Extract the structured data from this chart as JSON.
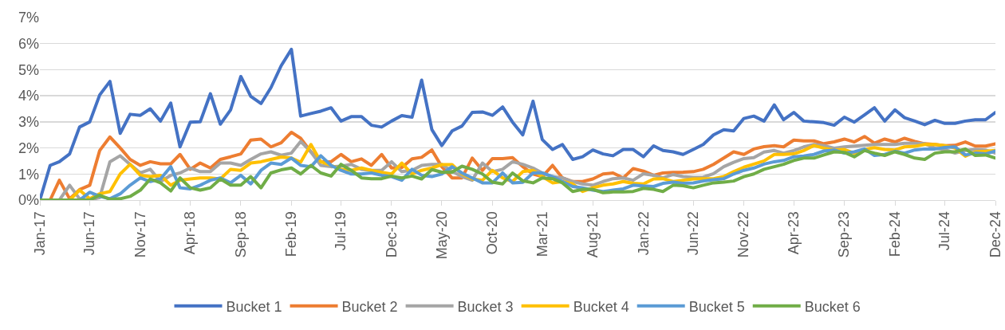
{
  "chart_data": {
    "type": "line",
    "x": [
      "2017-01",
      "2017-02",
      "2017-03",
      "2017-04",
      "2017-05",
      "2017-06",
      "2017-07",
      "2017-08",
      "2017-09",
      "2017-10",
      "2017-11",
      "2017-12",
      "2018-01",
      "2018-02",
      "2018-03",
      "2018-04",
      "2018-05",
      "2018-06",
      "2018-07",
      "2018-08",
      "2018-09",
      "2018-10",
      "2018-11",
      "2018-12",
      "2019-01",
      "2019-02",
      "2019-03",
      "2019-04",
      "2019-05",
      "2019-06",
      "2019-07",
      "2019-08",
      "2019-09",
      "2019-10",
      "2019-11",
      "2019-12",
      "2020-01",
      "2020-02",
      "2020-03",
      "2020-04",
      "2020-05",
      "2020-06",
      "2020-07",
      "2020-08",
      "2020-09",
      "2020-10",
      "2020-11",
      "2020-12",
      "2021-01",
      "2021-02",
      "2021-03",
      "2021-04",
      "2021-05",
      "2021-06",
      "2021-07",
      "2021-08",
      "2021-09",
      "2021-10",
      "2021-11",
      "2021-12",
      "2022-01",
      "2022-02",
      "2022-03",
      "2022-04",
      "2022-05",
      "2022-06",
      "2022-07",
      "2022-08",
      "2022-09",
      "2022-10",
      "2022-11",
      "2022-12",
      "2023-01",
      "2023-02",
      "2023-03",
      "2023-04",
      "2023-05",
      "2023-06",
      "2023-07",
      "2023-08",
      "2023-09",
      "2023-10",
      "2023-11",
      "2023-12",
      "2024-01",
      "2024-02",
      "2024-03",
      "2024-04",
      "2024-05",
      "2024-06",
      "2024-07",
      "2024-08",
      "2024-09",
      "2024-10",
      "2024-11",
      "2024-12"
    ],
    "series": [
      {
        "name": "Bucket 1",
        "color": "#4472c4",
        "values": [
          0,
          1.33,
          1.47,
          1.77,
          2.8,
          3.0,
          4.03,
          4.55,
          2.56,
          3.29,
          3.25,
          3.5,
          3.03,
          3.72,
          2.04,
          2.99,
          3.0,
          4.08,
          2.91,
          3.46,
          4.74,
          3.98,
          3.7,
          4.31,
          5.15,
          5.78,
          3.22,
          3.32,
          3.41,
          3.54,
          3.03,
          3.2,
          3.2,
          2.87,
          2.8,
          3.03,
          3.24,
          3.18,
          4.6,
          2.7,
          2.09,
          2.65,
          2.84,
          3.36,
          3.38,
          3.25,
          3.57,
          2.99,
          2.5,
          3.79,
          2.32,
          1.94,
          2.13,
          1.56,
          1.66,
          1.92,
          1.77,
          1.7,
          1.94,
          1.94,
          1.66,
          2.08,
          1.9,
          1.85,
          1.75,
          1.94,
          2.13,
          2.5,
          2.7,
          2.65,
          3.13,
          3.22,
          3.03,
          3.65,
          3.08,
          3.36,
          3.03,
          3.0,
          2.97,
          2.87,
          3.18,
          2.99,
          3.27,
          3.54,
          3.03,
          3.46,
          3.16,
          3.03,
          2.89,
          3.06,
          2.94,
          2.94,
          3.03,
          3.08,
          3.08,
          3.36
        ]
      },
      {
        "name": "Bucket 2",
        "color": "#ed7d31",
        "values": [
          0,
          0,
          0.76,
          0.05,
          0.4,
          0.57,
          1.9,
          2.42,
          2.0,
          1.56,
          1.33,
          1.47,
          1.39,
          1.39,
          1.75,
          1.18,
          1.42,
          1.23,
          1.56,
          1.66,
          1.77,
          2.3,
          2.34,
          2.04,
          2.2,
          2.6,
          2.37,
          1.85,
          1.47,
          1.47,
          1.75,
          1.47,
          1.58,
          1.33,
          1.75,
          1.23,
          1.25,
          1.58,
          1.64,
          1.92,
          1.28,
          0.85,
          0.85,
          1.61,
          1.14,
          1.59,
          1.59,
          1.63,
          1.28,
          1.0,
          0.9,
          1.33,
          0.85,
          0.71,
          0.71,
          0.81,
          1.0,
          1.04,
          0.85,
          1.21,
          1.11,
          0.95,
          1.04,
          1.06,
          1.07,
          1.09,
          1.18,
          1.37,
          1.61,
          1.85,
          1.75,
          1.96,
          2.05,
          2.09,
          2.04,
          2.3,
          2.27,
          2.27,
          2.16,
          2.23,
          2.34,
          2.23,
          2.44,
          2.18,
          2.34,
          2.23,
          2.37,
          2.25,
          2.16,
          2.13,
          2.09,
          2.1,
          2.23,
          2.07,
          2.07,
          2.16
        ]
      },
      {
        "name": "Bucket 3",
        "color": "#a5a5a5",
        "values": [
          0,
          0,
          0,
          0.57,
          0.05,
          0,
          0.1,
          1.47,
          1.7,
          1.37,
          1.04,
          1.18,
          0.71,
          0.95,
          1.04,
          1.23,
          1.09,
          1.09,
          1.42,
          1.42,
          1.33,
          1.56,
          1.77,
          1.85,
          1.72,
          1.8,
          2.25,
          1.85,
          1.33,
          1.28,
          1.3,
          1.37,
          1.18,
          1.14,
          1.14,
          1.47,
          1.09,
          1.14,
          1.33,
          1.37,
          1.37,
          1.1,
          0.9,
          0.76,
          1.42,
          1.09,
          1.18,
          1.47,
          1.37,
          1.23,
          1.04,
          0.9,
          0.85,
          0.71,
          0.62,
          0.57,
          0.71,
          0.82,
          0.85,
          0.76,
          1.01,
          0.95,
          0.85,
          0.98,
          0.9,
          0.87,
          0.88,
          1.01,
          1.28,
          1.45,
          1.59,
          1.63,
          1.84,
          1.9,
          1.8,
          1.9,
          2.04,
          2.13,
          2.09,
          1.99,
          2.04,
          2.07,
          2.1,
          2.13,
          2.13,
          2.13,
          2.18,
          2.18,
          2.16,
          1.99,
          1.94,
          1.8,
          1.9,
          1.94,
          1.92,
          1.8
        ]
      },
      {
        "name": "Bucket 4",
        "color": "#ffc000",
        "values": [
          null,
          null,
          0,
          0,
          0.38,
          0.05,
          0.24,
          0.33,
          1.0,
          1.37,
          0.95,
          0.9,
          0.95,
          0.57,
          0.76,
          0.81,
          0.85,
          0.85,
          0.81,
          1.18,
          1.14,
          1.42,
          1.47,
          1.56,
          1.65,
          1.61,
          1.45,
          2.13,
          1.47,
          1.33,
          1.18,
          1.14,
          1.23,
          1.14,
          1.06,
          1.0,
          1.42,
          1.0,
          1.14,
          1.23,
          1.36,
          1.36,
          1.0,
          0.81,
          0.76,
          1.14,
          0.85,
          0.71,
          1.09,
          1.14,
          0.9,
          0.66,
          0.71,
          0.62,
          0.33,
          0.47,
          0.57,
          0.62,
          0.71,
          0.64,
          0.62,
          0.81,
          0.82,
          0.71,
          0.76,
          0.81,
          0.82,
          0.82,
          0.9,
          1.09,
          1.26,
          1.38,
          1.5,
          1.75,
          1.75,
          1.77,
          1.9,
          2.09,
          1.99,
          1.92,
          1.94,
          1.8,
          1.94,
          2.01,
          1.94,
          1.92,
          2.04,
          2.06,
          2.13,
          2.13,
          2.09,
          1.99,
          1.68,
          1.85,
          1.87,
          1.9
        ]
      },
      {
        "name": "Bucket 5",
        "color": "#5b9bd5",
        "values": [
          0,
          0,
          0,
          0,
          0,
          0.3,
          0.14,
          0.05,
          0.24,
          0.57,
          0.85,
          0.71,
          0.81,
          1.28,
          0.47,
          0.43,
          0.57,
          0.76,
          0.85,
          0.66,
          0.95,
          0.62,
          1.14,
          1.42,
          1.37,
          1.61,
          1.33,
          1.28,
          1.7,
          1.33,
          1.14,
          1.0,
          1.0,
          1.04,
          0.95,
          0.9,
          0.76,
          1.18,
          0.95,
          0.9,
          1.0,
          1.28,
          1.04,
          0.85,
          0.66,
          0.66,
          1.04,
          0.66,
          0.68,
          1.04,
          1.04,
          0.9,
          0.71,
          0.52,
          0.47,
          0.38,
          0.33,
          0.38,
          0.43,
          0.57,
          0.54,
          0.52,
          0.64,
          0.69,
          0.64,
          0.66,
          0.73,
          0.78,
          0.82,
          1.0,
          1.14,
          1.23,
          1.38,
          1.47,
          1.52,
          1.66,
          1.69,
          1.75,
          1.88,
          1.92,
          1.8,
          1.85,
          1.96,
          1.71,
          1.75,
          1.87,
          1.8,
          1.92,
          1.96,
          1.96,
          2.02,
          2.04,
          1.73,
          1.8,
          1.77,
          1.88
        ]
      },
      {
        "name": "Bucket 6",
        "color": "#70ad47",
        "values": [
          0,
          0,
          0,
          0,
          0,
          0,
          0.19,
          0.03,
          0.05,
          0.14,
          0.38,
          0.81,
          0.66,
          0.35,
          0.85,
          0.47,
          0.38,
          0.47,
          0.81,
          0.57,
          0.57,
          0.9,
          0.47,
          1.04,
          1.16,
          1.23,
          1.0,
          1.33,
          1.04,
          0.92,
          1.37,
          1.14,
          0.85,
          0.82,
          0.82,
          0.92,
          0.85,
          0.92,
          0.81,
          1.17,
          1.07,
          1.07,
          1.3,
          1.18,
          1.0,
          0.69,
          0.62,
          1.04,
          0.74,
          0.66,
          0.85,
          0.82,
          0.66,
          0.33,
          0.41,
          0.41,
          0.28,
          0.31,
          0.31,
          0.33,
          0.45,
          0.41,
          0.33,
          0.57,
          0.55,
          0.47,
          0.57,
          0.66,
          0.69,
          0.73,
          0.9,
          1.0,
          1.18,
          1.28,
          1.37,
          1.52,
          1.61,
          1.61,
          1.73,
          1.85,
          1.83,
          1.66,
          1.9,
          1.8,
          1.71,
          1.85,
          1.75,
          1.61,
          1.56,
          1.8,
          1.85,
          1.85,
          1.96,
          1.71,
          1.73,
          1.61
        ]
      }
    ],
    "xlim": [
      "2017-01",
      "2024-12"
    ],
    "xticks": [
      {
        "value": "2017-01",
        "label": "Jan-17"
      },
      {
        "value": "2017-06",
        "label": "Jun-17"
      },
      {
        "value": "2017-11",
        "label": "Nov-17"
      },
      {
        "value": "2018-04",
        "label": "Apr-18"
      },
      {
        "value": "2018-09",
        "label": "Sep-18"
      },
      {
        "value": "2019-02",
        "label": "Feb-19"
      },
      {
        "value": "2019-07",
        "label": "Jul-19"
      },
      {
        "value": "2019-12",
        "label": "Dec-19"
      },
      {
        "value": "2020-05",
        "label": "May-20"
      },
      {
        "value": "2020-10",
        "label": "Oct-20"
      },
      {
        "value": "2021-03",
        "label": "Mar-21"
      },
      {
        "value": "2021-08",
        "label": "Aug-21"
      },
      {
        "value": "2022-01",
        "label": "Jan-22"
      },
      {
        "value": "2022-06",
        "label": "Jun-22"
      },
      {
        "value": "2022-11",
        "label": "Nov-22"
      },
      {
        "value": "2023-04",
        "label": "Apr-23"
      },
      {
        "value": "2023-09",
        "label": "Sep-23"
      },
      {
        "value": "2024-02",
        "label": "Feb-24"
      },
      {
        "value": "2024-07",
        "label": "Jul-24"
      },
      {
        "value": "2024-12",
        "label": "Dec-24"
      }
    ],
    "ylim": [
      0,
      7
    ],
    "yticks": [
      {
        "value": 0,
        "label": "0%"
      },
      {
        "value": 1,
        "label": "1%"
      },
      {
        "value": 2,
        "label": "2%"
      },
      {
        "value": 3,
        "label": "3%"
      },
      {
        "value": 4,
        "label": "4%"
      },
      {
        "value": 5,
        "label": "5%"
      },
      {
        "value": 6,
        "label": "6%"
      },
      {
        "value": 7,
        "label": "7%"
      }
    ],
    "grid": "y",
    "legend": "bottom",
    "marker": "none",
    "line_style": "solid"
  }
}
